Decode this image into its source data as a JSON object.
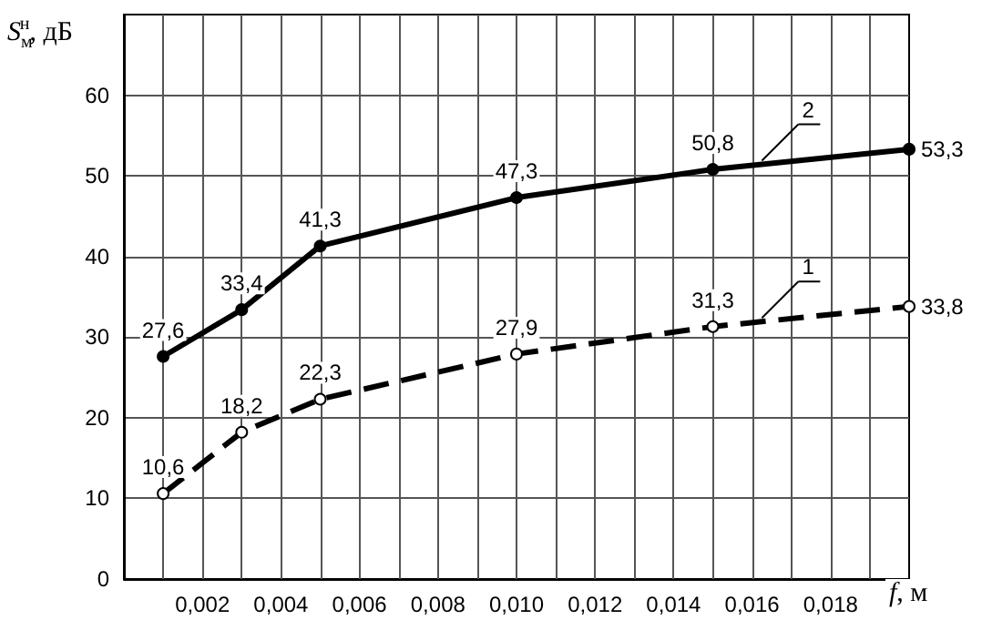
{
  "chart_data": {
    "type": "line",
    "xlabel": "f, м",
    "ylabel": "S$_{м}$$^{н}$, дБ",
    "x": [
      0.001,
      0.003,
      0.005,
      0.01,
      0.015,
      0.02
    ],
    "series": [
      {
        "name": "1",
        "color": "#000000",
        "line_style": "dashed",
        "values": [
          10.6,
          18.2,
          22.3,
          27.9,
          31.3,
          33.8
        ],
        "value_labels": [
          "10,6",
          "18,2",
          "22,3",
          "27,9",
          "31,3",
          "33,8"
        ]
      },
      {
        "name": "2",
        "color": "#000000",
        "line_style": "solid",
        "values": [
          27.6,
          33.4,
          41.3,
          47.3,
          50.8,
          53.3
        ],
        "value_labels": [
          "27,6",
          "33,4",
          "41,3",
          "47,3",
          "50,8",
          "53,3"
        ]
      }
    ],
    "xlim": [
      0,
      0.02
    ],
    "xticks": [
      {
        "value": 0.001,
        "label": null
      },
      {
        "value": 0.002,
        "label": "0,002"
      },
      {
        "value": 0.003,
        "label": null
      },
      {
        "value": 0.004,
        "label": "0,004"
      },
      {
        "value": 0.005,
        "label": null
      },
      {
        "value": 0.006,
        "label": "0,006"
      },
      {
        "value": 0.007,
        "label": null
      },
      {
        "value": 0.008,
        "label": "0,008"
      },
      {
        "value": 0.009,
        "label": null
      },
      {
        "value": 0.01,
        "label": "0,010"
      },
      {
        "value": 0.011,
        "label": null
      },
      {
        "value": 0.012,
        "label": "0,012"
      },
      {
        "value": 0.013,
        "label": null
      },
      {
        "value": 0.014,
        "label": "0,014"
      },
      {
        "value": 0.015,
        "label": null
      },
      {
        "value": 0.016,
        "label": "0,016"
      },
      {
        "value": 0.017,
        "label": null
      },
      {
        "value": 0.018,
        "label": "0,018"
      },
      {
        "value": 0.019,
        "label": null
      }
    ],
    "ylim": [
      0,
      70
    ],
    "yticks": [
      0,
      10,
      20,
      30,
      40,
      50,
      60
    ],
    "grid": true,
    "marker": "circle",
    "legend": false
  }
}
